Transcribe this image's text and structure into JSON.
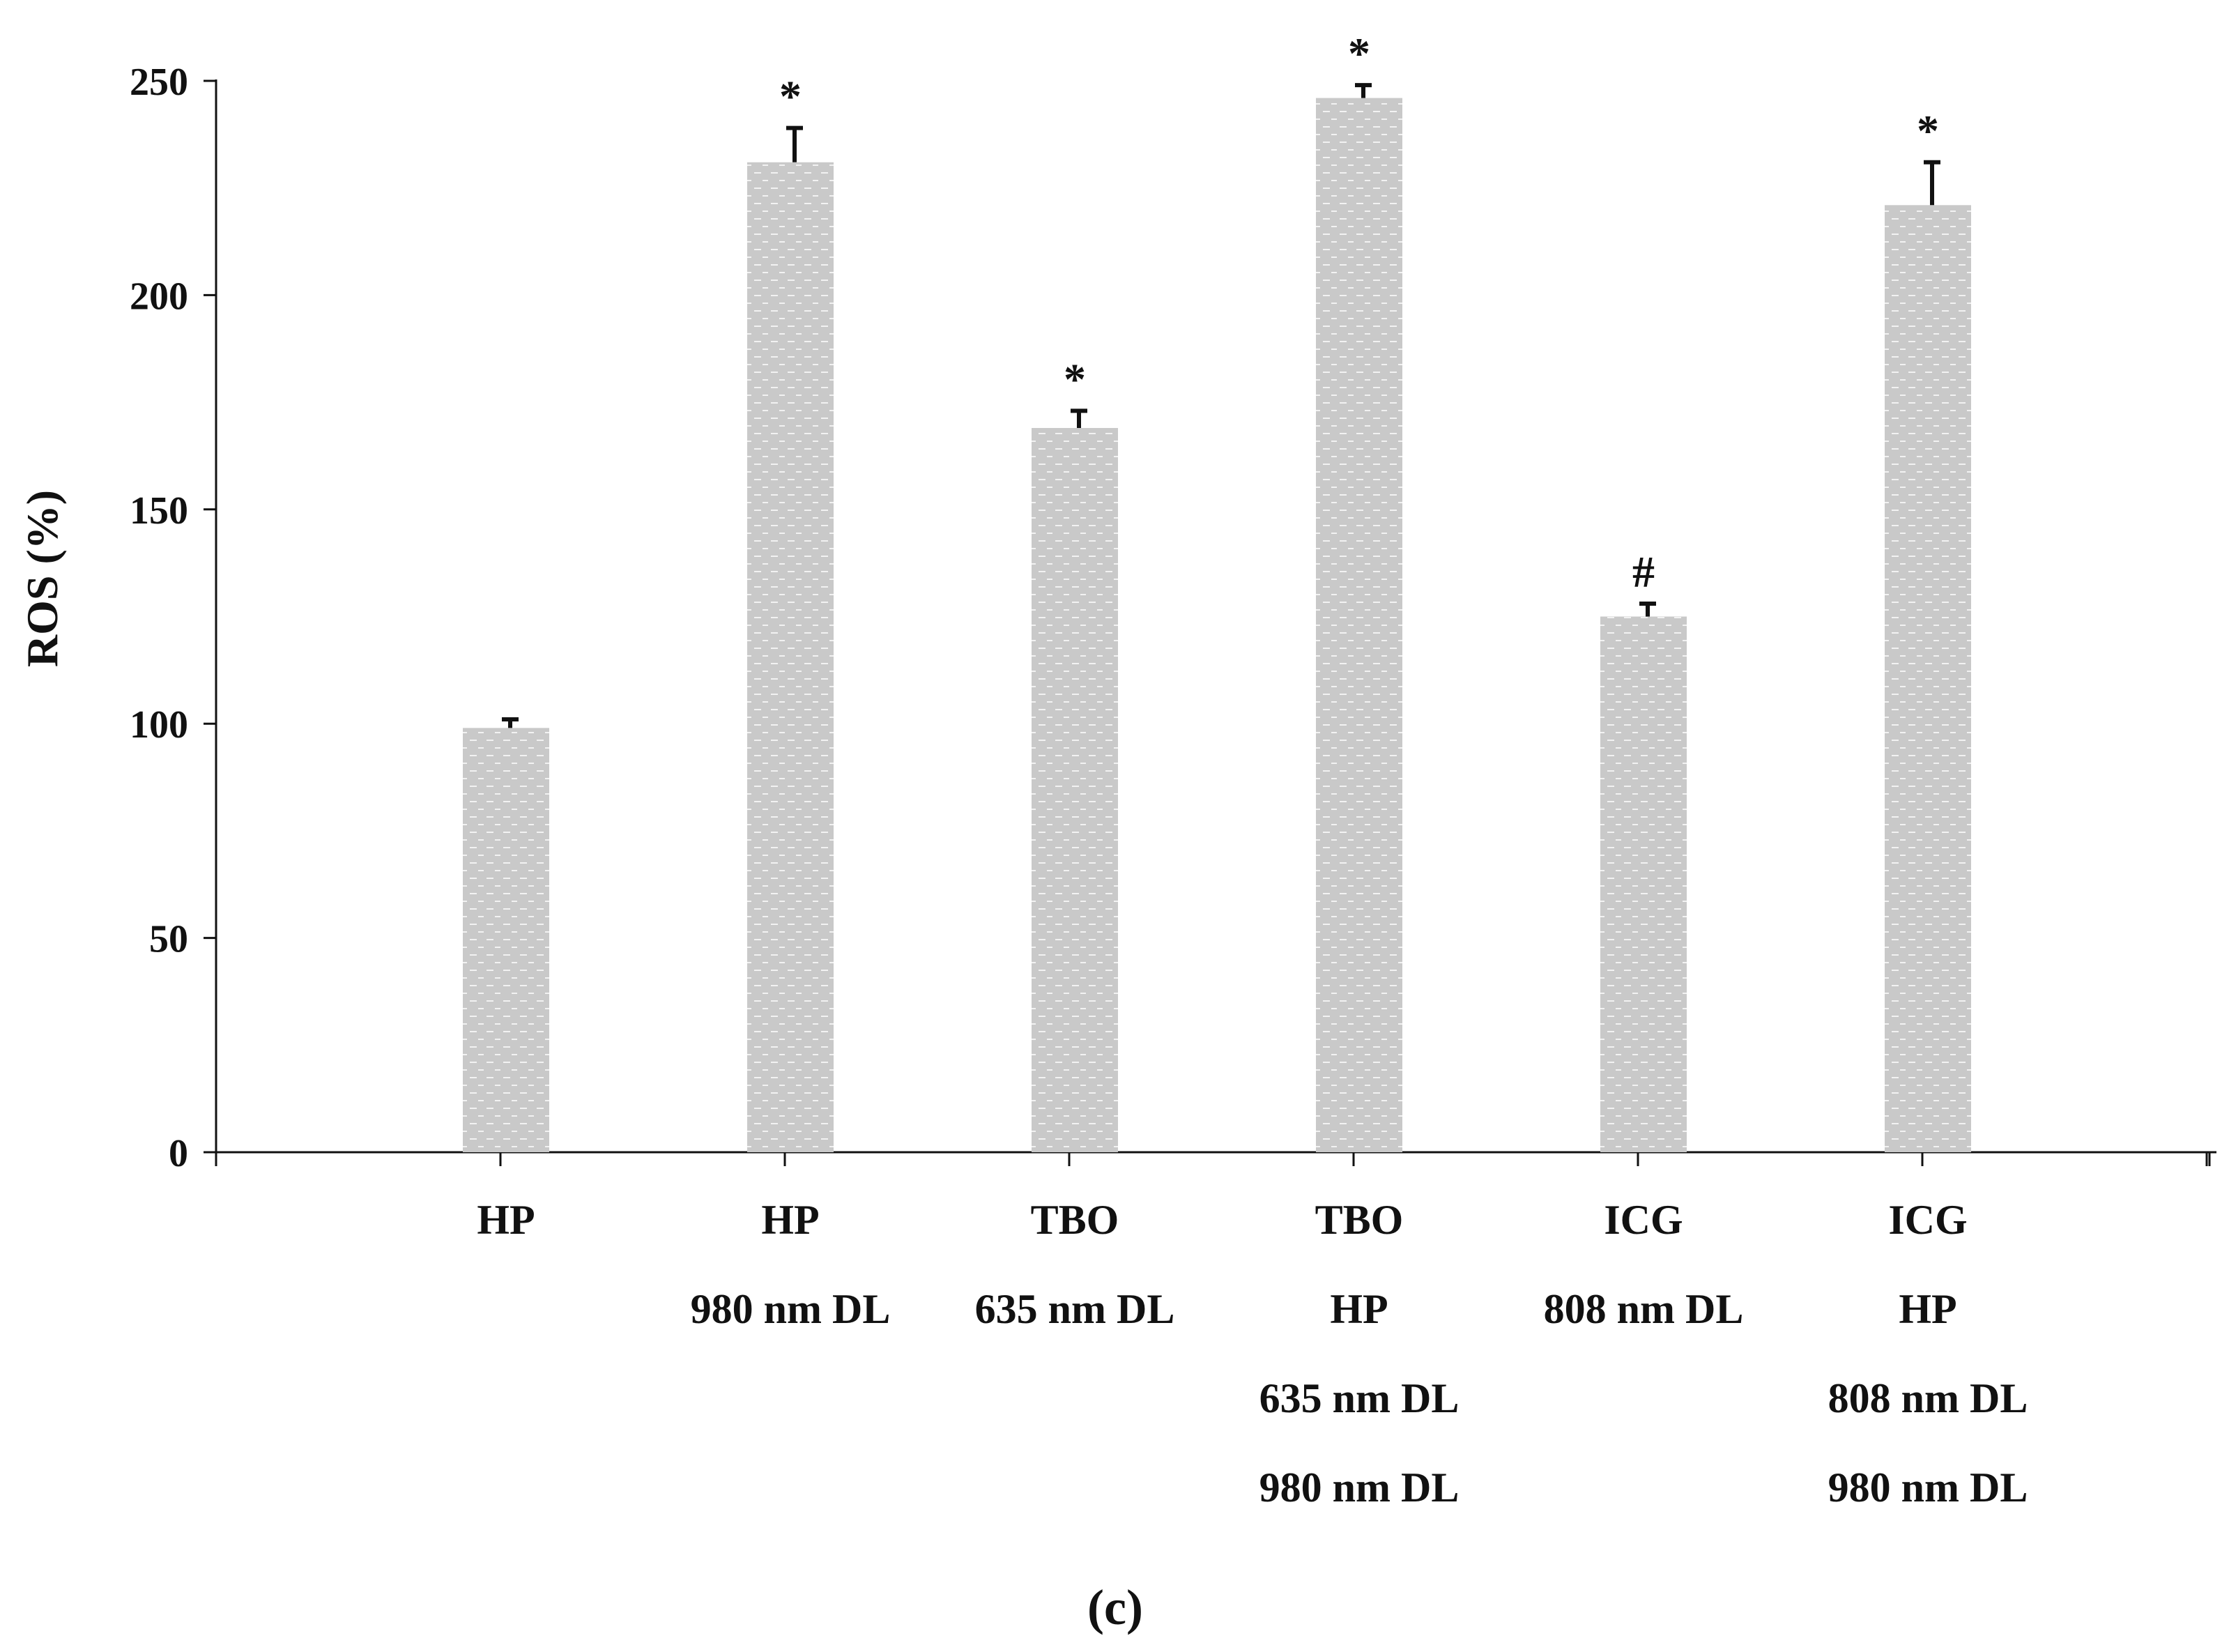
{
  "chart_data": {
    "type": "bar",
    "title": "",
    "ylabel": "ROS (%)",
    "xlabel": "",
    "ylim": [
      0,
      250
    ],
    "yticks": [
      0,
      50,
      100,
      150,
      200,
      250
    ],
    "grid": false,
    "categories": [
      [
        "HP"
      ],
      [
        "HP",
        "980 nm DL"
      ],
      [
        "TBO",
        "635 nm DL"
      ],
      [
        "TBO",
        "HP",
        "635 nm DL",
        "980 nm DL"
      ],
      [
        "ICG",
        "808 nm DL"
      ],
      [
        "ICG",
        "HP",
        "808 nm DL",
        "980 nm DL"
      ]
    ],
    "values": [
      99,
      231,
      169,
      246,
      125,
      221
    ],
    "errors": [
      2,
      8,
      4,
      3,
      3,
      10
    ],
    "annotations": [
      "",
      "*",
      "*",
      "*",
      "#",
      "*"
    ],
    "bar_color": "#c9c9c9",
    "bar_pattern_color": "#f2f2f2",
    "error_color": "#111111",
    "axis_color": "#111111"
  },
  "caption": "(c)"
}
